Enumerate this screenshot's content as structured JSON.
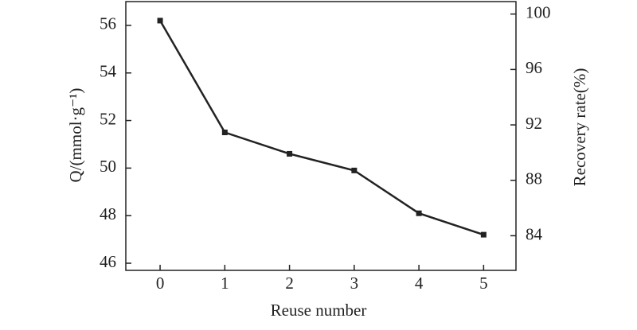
{
  "chart_data": {
    "type": "line",
    "x_label": "Reuse number",
    "y_label": "Q/(mmol·g⁻¹)",
    "y2_label": "Recovery rate(%)",
    "x": [
      0,
      1,
      2,
      3,
      4,
      5
    ],
    "values": [
      56.2,
      51.5,
      50.6,
      49.9,
      48.1,
      47.2
    ],
    "color": "#222222",
    "xlim": [
      -0.53,
      5.5
    ],
    "xticks": [
      0,
      1,
      2,
      3,
      4,
      5
    ],
    "ylim": [
      45.7,
      57
    ],
    "yticks": [
      46,
      48,
      50,
      52,
      54,
      56
    ],
    "y2lim": [
      81.5,
      100.9
    ],
    "y2ticks": [
      84,
      88,
      92,
      96,
      100
    ]
  }
}
